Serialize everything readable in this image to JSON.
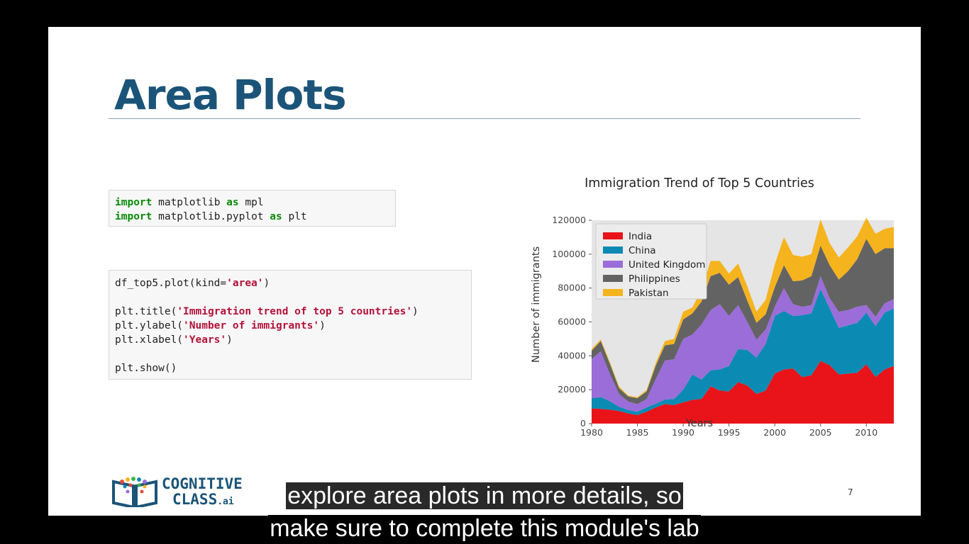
{
  "slide": {
    "title": "Area Plots",
    "page_number": "7"
  },
  "code_block_1": {
    "lines": [
      [
        {
          "t": "import",
          "c": "kw"
        },
        {
          "t": " matplotlib ",
          "c": ""
        },
        {
          "t": "as",
          "c": "kw"
        },
        {
          "t": " mpl",
          "c": ""
        }
      ],
      [
        {
          "t": "import",
          "c": "kw"
        },
        {
          "t": " matplotlib.pyplot ",
          "c": ""
        },
        {
          "t": "as",
          "c": "kw"
        },
        {
          "t": " plt",
          "c": ""
        }
      ]
    ]
  },
  "code_block_2": {
    "lines": [
      [
        {
          "t": "df_top5.plot(kind=",
          "c": ""
        },
        {
          "t": "'area'",
          "c": "str"
        },
        {
          "t": ")",
          "c": ""
        }
      ],
      [],
      [
        {
          "t": "plt.title(",
          "c": ""
        },
        {
          "t": "'Immigration trend of top 5 countries'",
          "c": "str"
        },
        {
          "t": ")",
          "c": ""
        }
      ],
      [
        {
          "t": "plt.ylabel(",
          "c": ""
        },
        {
          "t": "'Number of immigrants'",
          "c": "str"
        },
        {
          "t": ")",
          "c": ""
        }
      ],
      [
        {
          "t": "plt.xlabel(",
          "c": ""
        },
        {
          "t": "'Years'",
          "c": "str"
        },
        {
          "t": ")",
          "c": ""
        }
      ],
      [],
      [
        {
          "t": "plt.show()",
          "c": ""
        }
      ]
    ]
  },
  "logo": {
    "line1": "COGNITIVE",
    "line2": "CLASS",
    "suffix": ".ai"
  },
  "captions": {
    "line1": "explore area plots in more details, so",
    "line2": "make sure to complete this module's lab"
  },
  "chart_data": {
    "type": "area",
    "stacked": true,
    "title": "Immigration Trend of Top 5 Countries",
    "xlabel": "Years",
    "ylabel": "Number of immigrants",
    "xlim": [
      1980,
      2013
    ],
    "ylim": [
      0,
      120000
    ],
    "xticks": [
      1980,
      1985,
      1990,
      1995,
      2000,
      2005,
      2010
    ],
    "yticks": [
      0,
      20000,
      40000,
      60000,
      80000,
      100000,
      120000
    ],
    "legend_position": "top-left",
    "background": "#e5e5e5",
    "x": [
      1980,
      1981,
      1982,
      1983,
      1984,
      1985,
      1986,
      1987,
      1988,
      1989,
      1990,
      1991,
      1992,
      1993,
      1994,
      1995,
      1996,
      1997,
      1998,
      1999,
      2000,
      2001,
      2002,
      2003,
      2004,
      2005,
      2006,
      2007,
      2008,
      2009,
      2010,
      2011,
      2012,
      2013
    ],
    "series": [
      {
        "name": "India",
        "color": "#e8141a",
        "values": [
          9000,
          8700,
          8200,
          7400,
          6000,
          5000,
          7000,
          9500,
          11500,
          11000,
          12500,
          14000,
          14500,
          22000,
          19500,
          19000,
          24500,
          22500,
          17500,
          19500,
          29500,
          32000,
          32500,
          27500,
          28500,
          37000,
          34500,
          29000,
          29500,
          30000,
          35000,
          27500,
          32000,
          34000
        ]
      },
      {
        "name": "China",
        "color": "#0b8bb3",
        "values": [
          6000,
          7000,
          5000,
          2500,
          2000,
          2000,
          2500,
          2200,
          2700,
          3500,
          7500,
          15000,
          11500,
          9500,
          12500,
          15000,
          19500,
          21000,
          21500,
          27500,
          34000,
          34500,
          31000,
          36500,
          36500,
          42500,
          33500,
          27500,
          28500,
          29500,
          30500,
          30000,
          33500,
          34000
        ]
      },
      {
        "name": "United Kingdom",
        "color": "#9b6dd9",
        "values": [
          23000,
          27000,
          16000,
          7500,
          5000,
          4500,
          5000,
          14500,
          23000,
          23500,
          30000,
          23500,
          32500,
          35500,
          38500,
          29500,
          26000,
          16500,
          10500,
          8500,
          5500,
          13500,
          7000,
          5000,
          5000,
          7500,
          6000,
          9500,
          9000,
          9500,
          4500,
          5500,
          5500,
          5500
        ]
      },
      {
        "name": "Philippines",
        "color": "#636363",
        "values": [
          5000,
          6000,
          6000,
          3500,
          3000,
          3500,
          4500,
          8000,
          9000,
          9000,
          11500,
          12500,
          13500,
          20000,
          18500,
          18500,
          16500,
          12500,
          10000,
          9000,
          11500,
          13500,
          13500,
          15500,
          17000,
          18000,
          19500,
          19000,
          23000,
          28000,
          39000,
          37000,
          32500,
          30000
        ]
      },
      {
        "name": "Pakistan",
        "color": "#f5b31d",
        "values": [
          1000,
          1000,
          1000,
          1000,
          500,
          600,
          800,
          1500,
          2500,
          3000,
          4500,
          3500,
          7000,
          9000,
          7000,
          6500,
          8000,
          8500,
          6500,
          8500,
          13500,
          16500,
          15500,
          14000,
          13000,
          15500,
          13000,
          13000,
          14000,
          13500,
          12500,
          12000,
          11500,
          12500
        ]
      }
    ]
  }
}
